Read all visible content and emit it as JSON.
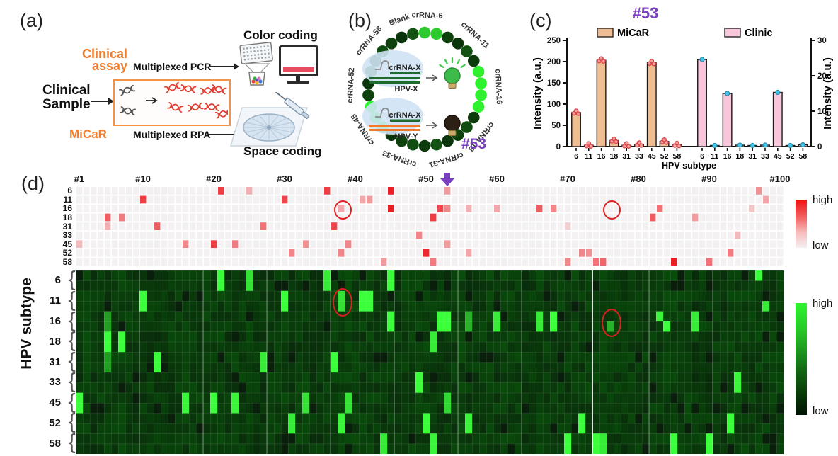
{
  "figure": {
    "panel_a": {
      "label": "(a)",
      "clinical_assay_line1": "Clinical",
      "clinical_assay_line2": "assay",
      "clinical_sample_line1": "Clinical",
      "clinical_sample_line2": "Sample",
      "micar_label": "MiCaR",
      "multiplexed_pcr": "Multiplexed PCR",
      "multiplexed_rpa": "Multiplexed RPA",
      "color_coding": "Color coding",
      "space_coding": "Space coding",
      "icons": [
        "microplate-icon",
        "bead-beaker-icon",
        "monitor-icon",
        "dna-icon",
        "space-chip-icon",
        "syringe-icon"
      ],
      "accent_orange": "#f07e2e"
    },
    "panel_b": {
      "label": "(b)",
      "sample_id": "#53",
      "sample_id_color": "#7b3fc1",
      "ring_labels": [
        "crRNA-6",
        "crRNA-11",
        "crRNA-16",
        "crRNA-18",
        "crRNA-31",
        "crRNA-33",
        "crRNA-45",
        "crRNA-52",
        "crRNA-58",
        "Blank"
      ],
      "ring_label_angles": [
        2,
        43,
        88,
        130,
        163,
        200,
        237,
        273,
        311,
        340
      ],
      "n_dots": 30,
      "bright_dots": [
        {
          "index": 0,
          "color": "#2ec92e"
        },
        {
          "index": 1,
          "color": "#2ec92e"
        },
        {
          "index": 6,
          "color": "#2ff22f"
        },
        {
          "index": 7,
          "color": "#2ff22f"
        },
        {
          "index": 8,
          "color": "#2ff22f"
        },
        {
          "index": 9,
          "color": "#2ff22f"
        },
        {
          "index": 19,
          "color": "#2ff22f"
        },
        {
          "index": 20,
          "color": "#2ff22f"
        },
        {
          "index": 21,
          "color": "#2ff22f"
        }
      ],
      "schematic": {
        "crrna_label_top": "crRNA-X",
        "hpv_label_top": "HPV-X",
        "crrna_label_bottom": "crRNA-X",
        "hpv_label_bottom": "HPV-Y",
        "match_color": "#1d6b2e",
        "mismatch_color": "#f07a28",
        "bulb_on_color": "#3dbb4a",
        "bulb_off_color": "#2b2013"
      }
    },
    "panel_c": {
      "label": "(c)",
      "title": "#53",
      "title_color": "#7b3fc1"
    },
    "panel_d": {
      "label": "(d)",
      "ylabel": "HPV subtype",
      "col_labels": [
        "#1",
        "#10",
        "#20",
        "#30",
        "#40",
        "#50",
        "#60",
        "#70",
        "#80",
        "#90",
        "#100"
      ],
      "row_labels": [
        "6",
        "11",
        "16",
        "18",
        "31",
        "33",
        "45",
        "52",
        "58"
      ],
      "arrow_col": 53,
      "arrow_color": "#7b3fc1",
      "legend_high": "high",
      "legend_low": "low"
    }
  },
  "chart_data": [
    {
      "type": "bar",
      "panel": "c",
      "title": "#53",
      "categories": [
        "6",
        "11",
        "16",
        "18",
        "31",
        "33",
        "45",
        "52",
        "58"
      ],
      "series": [
        {
          "name": "MiCaR",
          "axis": "left",
          "color": "#eebd92",
          "values": [
            80,
            3,
            203,
            14,
            3,
            5,
            197,
            12,
            4
          ],
          "point_color": "#d94545",
          "points_per_bar": 3
        },
        {
          "name": "Clinic",
          "axis": "right",
          "color": "#f7c6da",
          "values": [
            24.6,
            0.3,
            15,
            0.4,
            0.3,
            0.4,
            15.3,
            0.3,
            0.5
          ],
          "point_color": "#45c6e8",
          "points_per_bar": 1
        }
      ],
      "ylabel_left": "Intensity (a.u.)",
      "ylabel_right": "Intensity (a.u.)",
      "ylim_left": [
        0,
        250
      ],
      "yticks_left": [
        0,
        50,
        100,
        150,
        200,
        250
      ],
      "ylim_right": [
        0,
        30
      ],
      "yticks_right": [
        0,
        10,
        20,
        30
      ],
      "xlabel": "HPV subtype",
      "legend_position": "top"
    },
    {
      "type": "heatmap",
      "panel": "d-top",
      "name": "clinic-pcr-heatmap",
      "rows": [
        "6",
        "11",
        "16",
        "18",
        "31",
        "33",
        "45",
        "52",
        "58"
      ],
      "n_cols": 100,
      "colormap": {
        "low": "#f2f0f0",
        "high": "#ee1c24"
      },
      "cells": [
        [
          "6",
          21,
          0.85
        ],
        [
          "6",
          25,
          0.3
        ],
        [
          "6",
          36,
          0.85
        ],
        [
          "6",
          45,
          1
        ],
        [
          "6",
          53,
          0.4
        ],
        [
          "6",
          97,
          0.45
        ],
        [
          "11",
          10,
          0.85
        ],
        [
          "11",
          30,
          0.8
        ],
        [
          "11",
          41,
          0.35
        ],
        [
          "11",
          42,
          0.4
        ],
        [
          "11",
          98,
          0.35
        ],
        [
          "16",
          38,
          0.35
        ],
        [
          "16",
          45,
          1
        ],
        [
          "16",
          52,
          0.8
        ],
        [
          "16",
          53,
          0.5
        ],
        [
          "16",
          56,
          0.3
        ],
        [
          "16",
          60,
          0.35
        ],
        [
          "16",
          66,
          0.7
        ],
        [
          "16",
          68,
          0.5
        ],
        [
          "16",
          83,
          0.6
        ],
        [
          "16",
          96,
          0.2
        ],
        [
          "18",
          5,
          0.7
        ],
        [
          "18",
          7,
          0.55
        ],
        [
          "18",
          51,
          0.85
        ],
        [
          "18",
          82,
          0.7
        ],
        [
          "18",
          88,
          0.4
        ],
        [
          "31",
          5,
          0.3
        ],
        [
          "31",
          12,
          0.7
        ],
        [
          "31",
          27,
          0.6
        ],
        [
          "31",
          37,
          0.8
        ],
        [
          "31",
          70,
          0.15
        ],
        [
          "33",
          49,
          0.5
        ],
        [
          "33",
          94,
          0.25
        ],
        [
          "45",
          1,
          0.25
        ],
        [
          "45",
          16,
          0.5
        ],
        [
          "45",
          20,
          0.85
        ],
        [
          "45",
          23,
          0.55
        ],
        [
          "45",
          33,
          0.45
        ],
        [
          "45",
          39,
          0.5
        ],
        [
          "45",
          53,
          0.4
        ],
        [
          "52",
          31,
          0.5
        ],
        [
          "52",
          38,
          0.5
        ],
        [
          "52",
          50,
          0.95
        ],
        [
          "52",
          56,
          0.35
        ],
        [
          "52",
          72,
          0.5
        ],
        [
          "52",
          73,
          0.45
        ],
        [
          "52",
          93,
          0.55
        ],
        [
          "58",
          44,
          0.4
        ],
        [
          "58",
          51,
          0.55
        ],
        [
          "58",
          70,
          0.5
        ],
        [
          "58",
          74,
          0.6
        ],
        [
          "58",
          75,
          0.65
        ],
        [
          "58",
          85,
          1
        ],
        [
          "58",
          90,
          0.6
        ]
      ],
      "circles": [
        [
          "16",
          38
        ],
        [
          "16",
          76
        ]
      ]
    },
    {
      "type": "heatmap",
      "panel": "d-bottom",
      "name": "micar-fluorescence-heatmap",
      "rows": [
        "6",
        "11",
        "16",
        "18",
        "31",
        "33",
        "45",
        "52",
        "58"
      ],
      "n_cols": 100,
      "subrows_per_row": 2,
      "colormap": {
        "low": "#08320a",
        "high": "#3cff3c"
      },
      "cells": [
        [
          "6",
          21,
          1,
          0
        ],
        [
          "6",
          25,
          0.85,
          0
        ],
        [
          "6",
          36,
          0.9,
          0
        ],
        [
          "6",
          45,
          1,
          0
        ],
        [
          "6",
          97,
          1,
          1
        ],
        [
          "11",
          10,
          1,
          0
        ],
        [
          "11",
          30,
          1,
          0
        ],
        [
          "11",
          38,
          0.85,
          0
        ],
        [
          "11",
          41,
          1,
          0
        ],
        [
          "11",
          42,
          1,
          0
        ],
        [
          "11",
          98,
          0.9,
          2
        ],
        [
          "16",
          5,
          0.5,
          0
        ],
        [
          "16",
          45,
          1,
          0
        ],
        [
          "16",
          52,
          1,
          0
        ],
        [
          "16",
          53,
          1,
          0
        ],
        [
          "16",
          56,
          0.6,
          0
        ],
        [
          "16",
          60,
          0.9,
          0
        ],
        [
          "16",
          66,
          0.9,
          0
        ],
        [
          "16",
          68,
          1,
          0
        ],
        [
          "16",
          76,
          0.6,
          2
        ],
        [
          "16",
          83,
          0.95,
          1
        ],
        [
          "16",
          84,
          1,
          2
        ],
        [
          "16",
          88,
          0.9,
          0
        ],
        [
          "18",
          5,
          1,
          0
        ],
        [
          "18",
          7,
          1,
          0
        ],
        [
          "18",
          51,
          0.9,
          0
        ],
        [
          "31",
          5,
          0.5,
          0
        ],
        [
          "31",
          12,
          1,
          0
        ],
        [
          "31",
          27,
          0.9,
          0
        ],
        [
          "31",
          37,
          1,
          0
        ],
        [
          "33",
          49,
          1,
          0
        ],
        [
          "33",
          94,
          0.95,
          0
        ],
        [
          "45",
          1,
          1,
          0
        ],
        [
          "45",
          16,
          0.95,
          0
        ],
        [
          "45",
          20,
          1,
          0
        ],
        [
          "45",
          23,
          0.95,
          0
        ],
        [
          "45",
          33,
          0.85,
          0
        ],
        [
          "45",
          39,
          0.85,
          0
        ],
        [
          "45",
          53,
          0.8,
          0
        ],
        [
          "52",
          31,
          0.9,
          0
        ],
        [
          "52",
          38,
          0.95,
          0
        ],
        [
          "52",
          50,
          1,
          0
        ],
        [
          "52",
          56,
          0.95,
          0
        ],
        [
          "52",
          72,
          1,
          0
        ],
        [
          "52",
          93,
          1,
          0
        ],
        [
          "58",
          44,
          0.9,
          0
        ],
        [
          "58",
          51,
          0.95,
          0
        ],
        [
          "58",
          70,
          1,
          0
        ],
        [
          "58",
          74,
          1,
          0
        ],
        [
          "58",
          75,
          0.9,
          0
        ],
        [
          "58",
          85,
          1,
          0
        ],
        [
          "58",
          90,
          1,
          0
        ]
      ],
      "circles": [
        [
          "11",
          38
        ],
        [
          "16",
          76
        ]
      ],
      "separator_cols": [
        9,
        18,
        27,
        36,
        45,
        54,
        63,
        81,
        90
      ],
      "strong_separator_col": 73
    }
  ],
  "colors": {
    "purple": "#7b3fc1",
    "orange": "#f07e2e",
    "red_hot": "#ee1c24",
    "green_bright": "#3cff3c",
    "green_dark": "#0a360c"
  }
}
